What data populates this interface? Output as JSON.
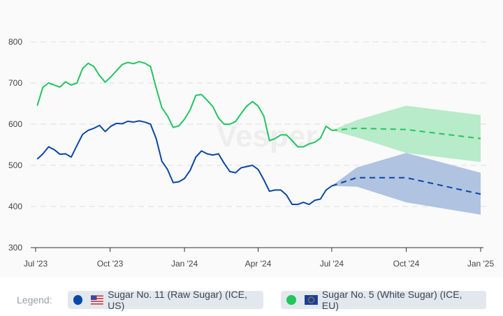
{
  "watermark": "Vesper",
  "legend": {
    "label": "Legend:",
    "items": [
      {
        "name": "Sugar No. 11 (Raw Sugar) (ICE, US)",
        "color": "#0b47a8",
        "flag": "us-flag-icon"
      },
      {
        "name": "Sugar No. 5 (White Sugar) (ICE, EU)",
        "color": "#22c55e",
        "flag": "eu-flag-icon"
      }
    ]
  },
  "chart_data": {
    "type": "line",
    "title": "",
    "xlabel": "",
    "ylabel": "",
    "ylim": [
      300,
      800
    ],
    "xlim": [
      "2023-07-01",
      "2025-01-01"
    ],
    "grid": true,
    "y_ticks": [
      300,
      400,
      500,
      600,
      700,
      800
    ],
    "x_ticks": [
      {
        "date": "2023-07-01",
        "label": "Jul '23"
      },
      {
        "date": "2023-10-01",
        "label": "Oct '23"
      },
      {
        "date": "2024-01-01",
        "label": "Jan '24"
      },
      {
        "date": "2024-04-01",
        "label": "Apr '24"
      },
      {
        "date": "2024-07-01",
        "label": "Jul '24"
      },
      {
        "date": "2024-10-01",
        "label": "Oct '24"
      },
      {
        "date": "2025-01-01",
        "label": "Jan '25"
      }
    ],
    "dates": [
      "2023-07-03",
      "2023-07-10",
      "2023-07-17",
      "2023-07-24",
      "2023-07-31",
      "2023-08-07",
      "2023-08-14",
      "2023-08-21",
      "2023-08-28",
      "2023-09-04",
      "2023-09-11",
      "2023-09-18",
      "2023-09-25",
      "2023-10-02",
      "2023-10-09",
      "2023-10-16",
      "2023-10-23",
      "2023-10-30",
      "2023-11-06",
      "2023-11-13",
      "2023-11-20",
      "2023-11-27",
      "2023-12-04",
      "2023-12-11",
      "2023-12-18",
      "2023-12-25",
      "2024-01-01",
      "2024-01-08",
      "2024-01-15",
      "2024-01-22",
      "2024-01-29",
      "2024-02-05",
      "2024-02-12",
      "2024-02-19",
      "2024-02-26",
      "2024-03-04",
      "2024-03-11",
      "2024-03-18",
      "2024-03-25",
      "2024-04-01",
      "2024-04-08",
      "2024-04-15",
      "2024-04-22",
      "2024-04-29",
      "2024-05-06",
      "2024-05-13",
      "2024-05-20",
      "2024-05-27",
      "2024-06-03",
      "2024-06-10",
      "2024-06-17",
      "2024-06-24",
      "2024-07-01"
    ],
    "series": [
      {
        "name": "Sugar No. 11 (Raw Sugar) (ICE, US)",
        "color": "#0b47a8",
        "values": [
          515,
          528,
          545,
          538,
          527,
          528,
          520,
          548,
          575,
          585,
          590,
          597,
          582,
          595,
          602,
          601,
          607,
          605,
          608,
          605,
          600,
          565,
          510,
          490,
          458,
          460,
          468,
          488,
          520,
          535,
          528,
          525,
          528,
          505,
          485,
          482,
          494,
          497,
          500,
          490,
          465,
          437,
          440,
          440,
          428,
          405,
          405,
          410,
          405,
          415,
          418,
          440,
          450
        ],
        "forecast": {
          "dates": [
            "2024-07-01",
            "2024-08-01",
            "2024-10-01",
            "2025-01-01"
          ],
          "mid": [
            450,
            470,
            470,
            430
          ],
          "upper": [
            450,
            495,
            530,
            482
          ],
          "lower": [
            450,
            448,
            410,
            380
          ],
          "band_color": "#b0c3e0"
        }
      },
      {
        "name": "Sugar No. 5 (White Sugar) (ICE, EU)",
        "color": "#22c55e",
        "values": [
          645,
          690,
          700,
          695,
          690,
          703,
          695,
          700,
          735,
          748,
          740,
          718,
          702,
          715,
          730,
          745,
          750,
          747,
          752,
          748,
          740,
          688,
          640,
          620,
          592,
          596,
          612,
          635,
          670,
          672,
          658,
          643,
          615,
          600,
          600,
          606,
          626,
          644,
          655,
          644,
          620,
          560,
          565,
          574,
          574,
          560,
          545,
          545,
          552,
          556,
          566,
          595,
          585
        ],
        "forecast": {
          "dates": [
            "2024-07-01",
            "2024-08-01",
            "2024-10-01",
            "2025-01-01"
          ],
          "mid": [
            585,
            590,
            587,
            565
          ],
          "upper": [
            585,
            610,
            645,
            622
          ],
          "lower": [
            585,
            568,
            530,
            508
          ],
          "band_color": "#b8ebc9"
        }
      }
    ]
  }
}
